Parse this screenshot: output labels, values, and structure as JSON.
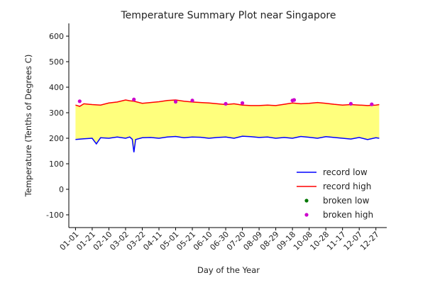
{
  "chart_data": {
    "type": "line",
    "title": "Temperature Summary Plot near Singapore",
    "xlabel": "Day of the Year",
    "ylabel": "Temperature (Tenths of Degrees C)",
    "ylim": [
      -150,
      650
    ],
    "xlim": [
      -8,
      373
    ],
    "yticks": [
      -100,
      0,
      100,
      200,
      300,
      400,
      500,
      600
    ],
    "xticks": [
      {
        "day": 0,
        "label": "01-01"
      },
      {
        "day": 20,
        "label": "01-21"
      },
      {
        "day": 40,
        "label": "02-10"
      },
      {
        "day": 60,
        "label": "03-02"
      },
      {
        "day": 80,
        "label": "03-22"
      },
      {
        "day": 100,
        "label": "04-11"
      },
      {
        "day": 120,
        "label": "05-01"
      },
      {
        "day": 140,
        "label": "05-21"
      },
      {
        "day": 160,
        "label": "06-10"
      },
      {
        "day": 180,
        "label": "06-30"
      },
      {
        "day": 200,
        "label": "07-20"
      },
      {
        "day": 220,
        "label": "08-09"
      },
      {
        "day": 240,
        "label": "08-29"
      },
      {
        "day": 260,
        "label": "09-18"
      },
      {
        "day": 280,
        "label": "10-08"
      },
      {
        "day": 300,
        "label": "10-28"
      },
      {
        "day": 320,
        "label": "11-17"
      },
      {
        "day": 340,
        "label": "12-07"
      },
      {
        "day": 360,
        "label": "12-27"
      }
    ],
    "grid": false,
    "fill_between": {
      "color": "#ffff66",
      "opacity": 0.85
    },
    "legend_position": "lower-right",
    "series": [
      {
        "name": "record low",
        "kind": "line",
        "color": "#0000ff",
        "x": [
          0,
          10,
          20,
          25,
          30,
          40,
          50,
          60,
          65,
          68,
          70,
          72,
          80,
          90,
          100,
          110,
          120,
          130,
          140,
          150,
          160,
          170,
          180,
          190,
          200,
          210,
          220,
          230,
          240,
          250,
          260,
          270,
          280,
          290,
          300,
          310,
          320,
          330,
          340,
          350,
          360,
          364
        ],
        "y": [
          195,
          198,
          200,
          178,
          202,
          200,
          205,
          200,
          205,
          196,
          145,
          195,
          202,
          203,
          200,
          205,
          207,
          202,
          205,
          204,
          200,
          203,
          205,
          200,
          208,
          206,
          203,
          205,
          200,
          203,
          200,
          207,
          204,
          200,
          206,
          203,
          200,
          197,
          203,
          195,
          202,
          200
        ]
      },
      {
        "name": "record high",
        "kind": "line",
        "color": "#ff0000",
        "x": [
          0,
          5,
          10,
          20,
          30,
          40,
          50,
          60,
          65,
          70,
          80,
          90,
          100,
          110,
          120,
          130,
          140,
          150,
          160,
          170,
          180,
          190,
          200,
          210,
          220,
          230,
          240,
          250,
          260,
          270,
          280,
          290,
          300,
          310,
          320,
          330,
          340,
          350,
          360,
          364
        ],
        "y": [
          330,
          325,
          335,
          332,
          330,
          338,
          342,
          350,
          347,
          345,
          337,
          340,
          343,
          348,
          350,
          345,
          342,
          340,
          338,
          335,
          332,
          335,
          330,
          328,
          328,
          330,
          328,
          333,
          338,
          335,
          337,
          340,
          337,
          333,
          330,
          332,
          330,
          328,
          330,
          332
        ]
      },
      {
        "name": "broken low",
        "kind": "scatter",
        "color": "#007700",
        "x": [],
        "y": []
      },
      {
        "name": "broken high",
        "kind": "scatter",
        "color": "#cc00cc",
        "x": [
          5,
          70,
          120,
          140,
          180,
          200,
          260,
          262,
          330,
          355
        ],
        "y": [
          345,
          352,
          343,
          348,
          335,
          338,
          348,
          350,
          335,
          333
        ]
      }
    ]
  }
}
